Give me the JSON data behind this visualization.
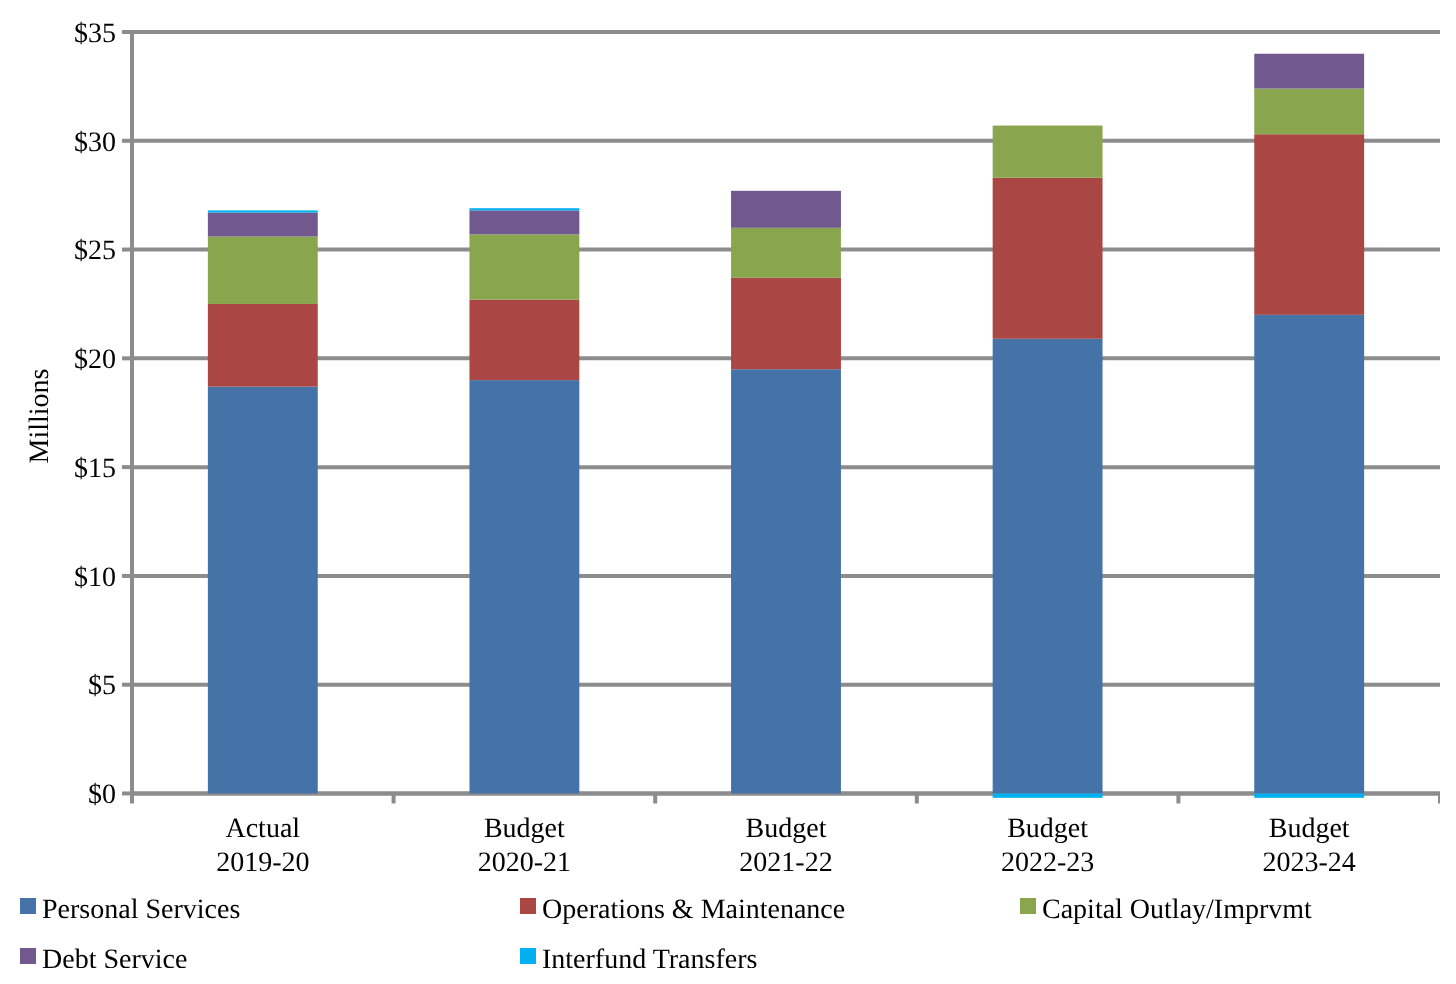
{
  "chart_data": {
    "type": "bar",
    "stacked": true,
    "ylabel": "Millions",
    "categories": [
      "Actual\n2019-20",
      "Budget\n2020-21",
      "Budget\n2021-22",
      "Budget\n2022-23",
      "Budget\n2023-24"
    ],
    "series": [
      {
        "name": "Personal Services",
        "color": "#4572a7",
        "values": [
          18.7,
          19.0,
          19.5,
          20.9,
          22.0
        ]
      },
      {
        "name": "Operations & Maintenance",
        "color": "#aa4643",
        "values": [
          3.8,
          3.7,
          4.2,
          7.4,
          8.3
        ]
      },
      {
        "name": "Capital Outlay/Imprvmt",
        "color": "#89a54e",
        "values": [
          3.1,
          3.0,
          2.3,
          2.4,
          2.1
        ]
      },
      {
        "name": "Debt Service",
        "color": "#71588f",
        "values": [
          1.1,
          1.1,
          1.7,
          0,
          1.6
        ]
      },
      {
        "name": "Interfund Transfers",
        "color": "#00b0f0",
        "values": [
          0.1,
          0.1,
          0,
          -0.2,
          -0.2
        ]
      }
    ],
    "ylim": [
      -0.3,
      35
    ],
    "yticks": [
      {
        "value": 0,
        "label": "$0"
      },
      {
        "value": 5,
        "label": "$5"
      },
      {
        "value": 10,
        "label": "$10"
      },
      {
        "value": 15,
        "label": "$15"
      },
      {
        "value": 20,
        "label": "$20"
      },
      {
        "value": 25,
        "label": "$25"
      },
      {
        "value": 30,
        "label": "$30"
      },
      {
        "value": 35,
        "label": "$35"
      }
    ],
    "grid": "y",
    "legend": "bottom"
  }
}
